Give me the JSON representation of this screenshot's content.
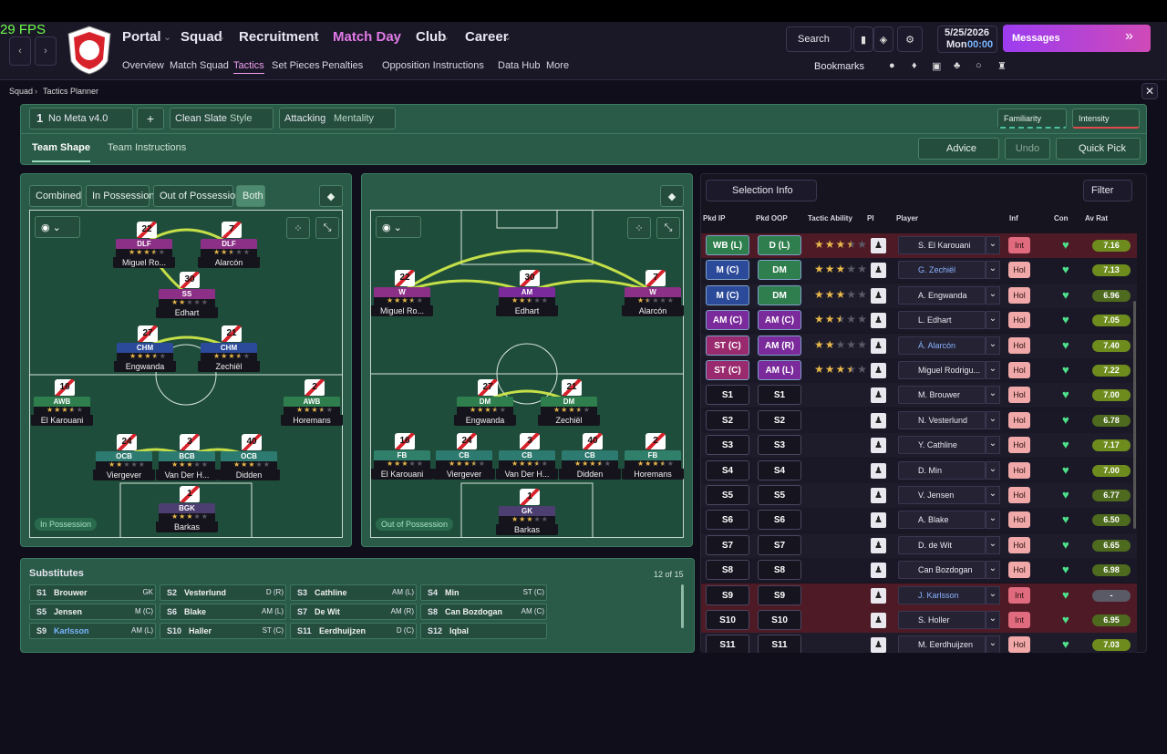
{
  "fps": "29 FPS",
  "nav": {
    "main": [
      "Portal",
      "Squad",
      "Recruitment",
      "Match Day",
      "Club",
      "Career"
    ],
    "sub": [
      "Overview",
      "Match Squad",
      "Tactics",
      "Set Pieces",
      "Penalties",
      "Opposition Instructions",
      "Data Hub",
      "More"
    ],
    "search": "Search",
    "date": "5/25/2026",
    "day": "Mon",
    "time": "00:00",
    "messages": "Messages",
    "bookmarks": "Bookmarks"
  },
  "breadcrumb": [
    "Squad",
    "Tactics Planner"
  ],
  "toolbar": {
    "slot": "1",
    "tactic": "No Meta v4.0",
    "style": "Clean Slate",
    "style_label": "Style",
    "mentality": "Attacking",
    "mentality_label": "Mentality",
    "familiarity": "Familiarity",
    "intensity": "Intensity",
    "tabs": [
      "Team Shape",
      "Team Instructions"
    ],
    "advice": "Advice",
    "undo": "Undo",
    "quick_pick": "Quick Pick"
  },
  "pitch_in": {
    "modes": [
      "Combined",
      "In Possession",
      "Out of Possession",
      "Both"
    ],
    "label": "In Possession",
    "players": [
      {
        "num": 22,
        "role": "DLF",
        "name": "Miguel Ro...",
        "stars": 3.5
      },
      {
        "num": 7,
        "role": "DLF",
        "name": "Alarcón",
        "stars": 2.5
      },
      {
        "num": 30,
        "role": "SS",
        "name": "Edhart",
        "stars": 2
      },
      {
        "num": 27,
        "role": "CHM",
        "name": "Engwanda",
        "stars": 3.5
      },
      {
        "num": 21,
        "role": "CHM",
        "name": "Zechiël",
        "stars": 3.5
      },
      {
        "num": 16,
        "role": "AWB",
        "name": "El Karouani",
        "stars": 3.5
      },
      {
        "num": 2,
        "role": "AWB",
        "name": "Horemans",
        "stars": 3.5
      },
      {
        "num": 24,
        "role": "OCB",
        "name": "Viergever",
        "stars": 2
      },
      {
        "num": 3,
        "role": "BCB",
        "name": "Van Der H...",
        "stars": 3
      },
      {
        "num": 40,
        "role": "OCB",
        "name": "Didden",
        "stars": 3
      },
      {
        "num": 1,
        "role": "BGK",
        "name": "Barkas",
        "stars": 3
      }
    ]
  },
  "pitch_out": {
    "label": "Out of Possession",
    "players": [
      {
        "num": 22,
        "role": "W",
        "name": "Miguel Ro...",
        "stars": 3.5
      },
      {
        "num": 30,
        "role": "AM",
        "name": "Edhart",
        "stars": 2.5
      },
      {
        "num": 7,
        "role": "W",
        "name": "Alarcón",
        "stars": 1.5
      },
      {
        "num": 27,
        "role": "DM",
        "name": "Engwanda",
        "stars": 3.5
      },
      {
        "num": 21,
        "role": "DM",
        "name": "Zechiël",
        "stars": 3.5
      },
      {
        "num": 16,
        "role": "FB",
        "name": "El Karouani",
        "stars": 3
      },
      {
        "num": 24,
        "role": "CB",
        "name": "Viergever",
        "stars": 3.5
      },
      {
        "num": 3,
        "role": "CB",
        "name": "Van Der H...",
        "stars": 3.5
      },
      {
        "num": 40,
        "role": "CB",
        "name": "Didden",
        "stars": 3.5
      },
      {
        "num": 2,
        "role": "FB",
        "name": "Horemans",
        "stars": 3.5
      },
      {
        "num": 1,
        "role": "GK",
        "name": "Barkas",
        "stars": 3
      }
    ]
  },
  "substitutes": {
    "title": "Substitutes",
    "count": "12 of 15",
    "rows": [
      {
        "slot": "S1",
        "name": "Brouwer",
        "pos": "GK"
      },
      {
        "slot": "S2",
        "name": "Vesterlund",
        "pos": "D (R)"
      },
      {
        "slot": "S3",
        "name": "Cathline",
        "pos": "AM (L)"
      },
      {
        "slot": "S4",
        "name": "Min",
        "pos": "ST (C)"
      },
      {
        "slot": "S5",
        "name": "Jensen",
        "pos": "M (C)"
      },
      {
        "slot": "S6",
        "name": "Blake",
        "pos": "AM (L)"
      },
      {
        "slot": "S7",
        "name": "De Wit",
        "pos": "AM (R)"
      },
      {
        "slot": "S8",
        "name": "Can Bozdogan",
        "pos": "AM (C)"
      },
      {
        "slot": "S9",
        "name": "Karlsson",
        "pos": "AM (L)"
      },
      {
        "slot": "S10",
        "name": "Haller",
        "pos": "ST (C)"
      },
      {
        "slot": "S11",
        "name": "Eerdhuijzen",
        "pos": "D (C)"
      },
      {
        "slot": "S12",
        "name": "Iqbal",
        "pos": null
      }
    ]
  },
  "selection": {
    "info": "Selection Info",
    "filter": "Filter",
    "headers": [
      "Pkd IP",
      "Pkd OOP",
      "Tactic Ability",
      "PI",
      "Player",
      "Inf",
      "Con",
      "Av Rat"
    ],
    "rows": [
      {
        "ip": "WB (L)",
        "oop": "D (L)",
        "ability": 3.5,
        "player": "S. El Karouani",
        "inf": "Int",
        "rating": "7.16"
      },
      {
        "ip": "M (C)",
        "oop": "DM",
        "ability": 3,
        "player": "G. Zechiël",
        "inf": "Hol",
        "rating": "7.13"
      },
      {
        "ip": "M (C)",
        "oop": "DM",
        "ability": 3,
        "player": "A. Engwanda",
        "inf": "Hol",
        "rating": "6.96"
      },
      {
        "ip": "AM (C)",
        "oop": "AM (C)",
        "ability": 2.5,
        "player": "L. Edhart",
        "inf": "Hol",
        "rating": "7.05"
      },
      {
        "ip": "ST (C)",
        "oop": "AM (R)",
        "ability": 2,
        "player": "Á. Alarcón",
        "inf": "Hol",
        "rating": "7.40"
      },
      {
        "ip": "ST (C)",
        "oop": "AM (L)",
        "ability": 3.5,
        "player": "Miguel Rodrigu...",
        "inf": "Hol",
        "rating": "7.22"
      },
      {
        "ip": "S1",
        "oop": "S1",
        "ability": null,
        "player": "M. Brouwer",
        "inf": "Hol",
        "rating": "7.00"
      },
      {
        "ip": "S2",
        "oop": "S2",
        "ability": null,
        "player": "N. Vesterlund",
        "inf": "Hol",
        "rating": "6.78"
      },
      {
        "ip": "S3",
        "oop": "S3",
        "ability": null,
        "player": "Y. Cathline",
        "inf": "Hol",
        "rating": "7.17"
      },
      {
        "ip": "S4",
        "oop": "S4",
        "ability": null,
        "player": "D. Min",
        "inf": "Hol",
        "rating": "7.00"
      },
      {
        "ip": "S5",
        "oop": "S5",
        "ability": null,
        "player": "V. Jensen",
        "inf": "Hol",
        "rating": "6.77"
      },
      {
        "ip": "S6",
        "oop": "S6",
        "ability": null,
        "player": "A. Blake",
        "inf": "Hol",
        "rating": "6.50"
      },
      {
        "ip": "S7",
        "oop": "S7",
        "ability": null,
        "player": "D. de Wit",
        "inf": "Hol",
        "rating": "6.65"
      },
      {
        "ip": "S8",
        "oop": "S8",
        "ability": null,
        "player": "Can Bozdogan",
        "inf": "Hol",
        "rating": "6.98"
      },
      {
        "ip": "S9",
        "oop": "S9",
        "ability": null,
        "player": "J. Karlsson",
        "inf": "Int",
        "rating": "-"
      },
      {
        "ip": "S10",
        "oop": "S10",
        "ability": null,
        "player": "S. Holler",
        "inf": "Int",
        "rating": "6.95"
      },
      {
        "ip": "S11",
        "oop": "S11",
        "ability": null,
        "player": "M. Eerdhuijzen",
        "inf": "Hol",
        "rating": "7.03"
      }
    ]
  }
}
